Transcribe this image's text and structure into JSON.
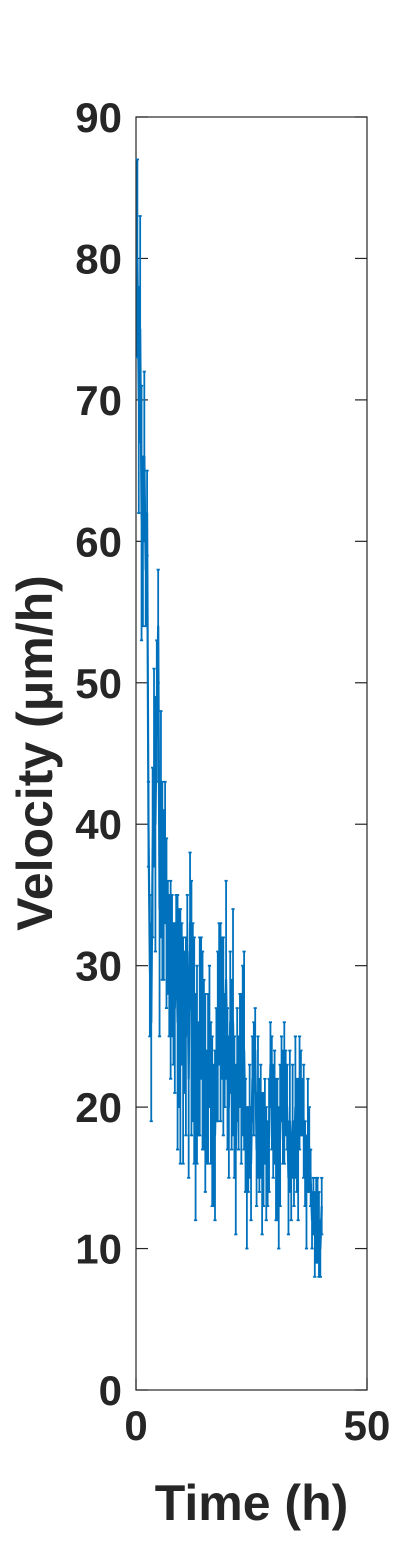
{
  "chart_data": {
    "type": "line",
    "title": "",
    "xlabel": "Time (h)",
    "ylabel": "Velocity (μm/h)",
    "xlim": [
      0,
      50
    ],
    "ylim": [
      0,
      90
    ],
    "xticks": [
      "0",
      "50"
    ],
    "yticks": [
      "0",
      "10",
      "20",
      "30",
      "40",
      "50",
      "60",
      "70",
      "80",
      "90"
    ],
    "grid": false,
    "legend": "none",
    "error_bars": true,
    "color": "#0072BD",
    "axis_color": "#262626",
    "series": [
      {
        "x": [
          0.3,
          0.6,
          0.9,
          1.2,
          1.5,
          1.8,
          2.1,
          2.4,
          2.7,
          3.0,
          3.3,
          3.6,
          3.9,
          4.2,
          4.5,
          4.8,
          5.1,
          5.4,
          5.7,
          6.0,
          6.3,
          6.6,
          6.9,
          7.2,
          7.5,
          7.8,
          8.1,
          8.4,
          8.7,
          9.0,
          9.3,
          9.6,
          9.9,
          10.2,
          10.5,
          10.8,
          11.1,
          11.4,
          11.7,
          12.0,
          12.3,
          12.6,
          12.9,
          13.2,
          13.5,
          13.8,
          14.1,
          14.4,
          14.7,
          15.0,
          15.3,
          15.6,
          15.9,
          16.2,
          16.5,
          16.8,
          17.1,
          17.4,
          17.7,
          18.0,
          18.3,
          18.6,
          18.9,
          19.2,
          19.5,
          19.8,
          20.1,
          20.4,
          20.7,
          21.0,
          21.3,
          21.6,
          21.9,
          22.2,
          22.5,
          22.8,
          23.1,
          23.4,
          23.7,
          24.0,
          24.3,
          24.6,
          24.9,
          25.2,
          25.5,
          25.8,
          26.1,
          26.4,
          26.7,
          27.0,
          27.3,
          27.6,
          27.9,
          28.2,
          28.5,
          28.8,
          29.1,
          29.4,
          29.7,
          30.0,
          30.3,
          30.6,
          30.9,
          31.2,
          31.5,
          31.8,
          32.1,
          32.4,
          32.7,
          33.0,
          33.3,
          33.6,
          33.9,
          34.2,
          34.5,
          34.8,
          35.1,
          35.4,
          35.7,
          36.0,
          36.3,
          36.6,
          36.9,
          37.2,
          37.5,
          37.8,
          38.1,
          38.4,
          38.7,
          39.0,
          39.3,
          39.6,
          39.9,
          40.2
        ],
        "y": [
          80,
          70,
          75,
          62,
          60,
          66,
          58,
          62,
          40,
          30,
          26,
          38,
          44,
          40,
          48,
          54,
          34,
          40,
          36,
          35,
          38,
          33,
          32,
          30,
          29,
          30,
          28,
          27,
          32,
          26,
          27,
          25,
          28,
          24,
          26,
          25,
          31,
          22,
          33,
          27,
          26,
          24,
          20,
          23,
          22,
          25,
          27,
          24,
          23,
          21,
          20,
          22,
          25,
          21,
          19,
          18,
          18,
          23,
          25,
          28,
          26,
          27,
          25,
          24,
          29,
          22,
          20,
          26,
          23,
          26,
          20,
          17,
          23,
          21,
          24,
          22,
          24,
          24,
          18,
          15,
          17,
          19,
          16,
          22,
          22,
          24,
          17,
          20,
          18,
          19,
          16,
          17,
          19,
          16,
          16,
          18,
          23,
          21,
          19,
          20,
          17,
          17,
          15,
          18,
          22,
          20,
          21,
          21,
          20,
          15,
          19,
          15,
          19,
          16,
          20,
          18,
          17,
          21,
          21,
          20,
          19,
          16,
          14,
          18,
          17,
          15,
          12,
          13,
          11,
          12,
          12,
          11,
          10,
          13
        ],
        "err": [
          7,
          8,
          8,
          9,
          6,
          6,
          4,
          3,
          3,
          5,
          7,
          6,
          7,
          9,
          5,
          4,
          9,
          8,
          7,
          6,
          5,
          6,
          4,
          5,
          7,
          5,
          5,
          6,
          3,
          9,
          7,
          9,
          5,
          8,
          5,
          7,
          4,
          7,
          5,
          9,
          7,
          8,
          8,
          7,
          4,
          7,
          5,
          7,
          6,
          7,
          4,
          6,
          5,
          5,
          6,
          5,
          6,
          4,
          6,
          5,
          7,
          5,
          7,
          4,
          7,
          5,
          5,
          5,
          6,
          8,
          5,
          6,
          4,
          4,
          4,
          6,
          6,
          7,
          4,
          5,
          3,
          4,
          4,
          3,
          4,
          3,
          4,
          5,
          4,
          4,
          5,
          4,
          3,
          4,
          3,
          4,
          3,
          4,
          4,
          4,
          5,
          5,
          5,
          5,
          3,
          4,
          5,
          3,
          3,
          4,
          5,
          3,
          4,
          3,
          5,
          4,
          5,
          4,
          3,
          2,
          4,
          3,
          4,
          4,
          3,
          2,
          2,
          2,
          3,
          3,
          3,
          3,
          2,
          2
        ]
      }
    ]
  }
}
